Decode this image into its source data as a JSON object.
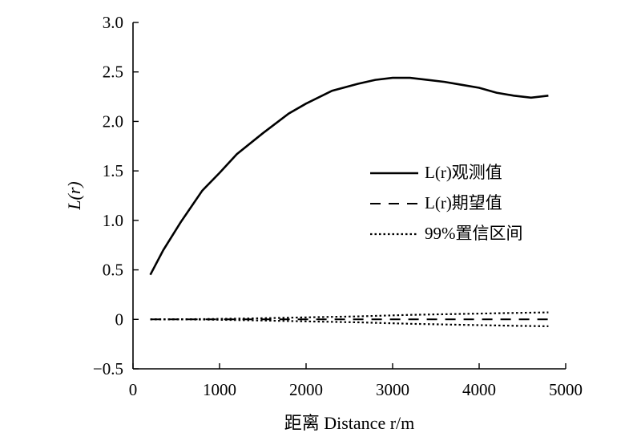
{
  "chart_data": {
    "type": "line",
    "xlabel": "距离 Distance r/m",
    "ylabel": "L(r)",
    "xlim": [
      0,
      5000
    ],
    "ylim": [
      -0.5,
      3.0
    ],
    "x_ticks": [
      "0",
      "1000",
      "2000",
      "3000",
      "4000",
      "5000"
    ],
    "y_ticks": [
      "−0.5",
      "0",
      "0.5",
      "1.0",
      "1.5",
      "2.0",
      "2.5",
      "3.0"
    ],
    "grid": false,
    "legend_position": "center-right",
    "series": [
      {
        "name": "L(r)观测值",
        "style": "solid",
        "x": [
          200,
          350,
          550,
          800,
          1000,
          1200,
          1500,
          1800,
          2000,
          2300,
          2600,
          2800,
          3000,
          3200,
          3400,
          3600,
          3800,
          4000,
          4200,
          4400,
          4600,
          4800
        ],
        "y": [
          0.45,
          0.7,
          0.98,
          1.3,
          1.48,
          1.67,
          1.88,
          2.08,
          2.18,
          2.31,
          2.38,
          2.42,
          2.44,
          2.44,
          2.42,
          2.4,
          2.37,
          2.34,
          2.29,
          2.26,
          2.24,
          2.26
        ]
      },
      {
        "name": "L(r)期望值",
        "style": "dashed",
        "x": [
          200,
          4800
        ],
        "y": [
          0.0,
          0.0
        ]
      },
      {
        "name": "99%置信区间",
        "style": "dotted",
        "x": [
          200,
          800,
          1400,
          2000,
          2600,
          3200,
          3800,
          4400,
          4800
        ],
        "y": [
          0.0,
          0.002,
          0.01,
          0.02,
          0.03,
          0.045,
          0.055,
          0.065,
          0.07
        ]
      },
      {
        "name": "",
        "style": "dotted",
        "x": [
          200,
          800,
          1400,
          2000,
          2600,
          3200,
          3800,
          4400,
          4800
        ],
        "y": [
          0.0,
          -0.002,
          -0.01,
          -0.02,
          -0.03,
          -0.045,
          -0.055,
          -0.065,
          -0.07
        ]
      }
    ]
  }
}
